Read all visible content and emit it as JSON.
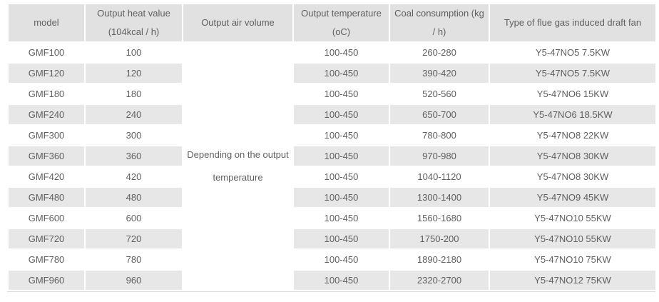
{
  "table": {
    "headers": {
      "model": "model",
      "heat": "Output heat value\n(104kcal / h)",
      "air": "Output air volume",
      "temp": "Output temperature\n(oC)",
      "coal": "Coal consumption (kg\n/ h)",
      "fan": "Type of flue gas induced draft fan"
    },
    "air_volume_note": "Depending on the output\ntemperature",
    "rows": [
      {
        "model": "GMF100",
        "heat": "100",
        "temp": "100-450",
        "coal": "260-280",
        "fan": "Y5-47NO5 7.5KW"
      },
      {
        "model": "GMF120",
        "heat": "120",
        "temp": "100-450",
        "coal": "390-420",
        "fan": "Y5-47NO5 7.5KW"
      },
      {
        "model": "GMF180",
        "heat": "180",
        "temp": "100-450",
        "coal": "520-560",
        "fan": "Y5-47NO6 15KW"
      },
      {
        "model": "GMF240",
        "heat": "240",
        "temp": "100-450",
        "coal": "650-700",
        "fan": "Y5-47NO6 18.5KW"
      },
      {
        "model": "GMF300",
        "heat": "300",
        "temp": "100-450",
        "coal": "780-800",
        "fan": "Y5-47NO8 22KW"
      },
      {
        "model": "GMF360",
        "heat": "360",
        "temp": "100-450",
        "coal": "970-980",
        "fan": "Y5-47NO8 30KW"
      },
      {
        "model": "GMF420",
        "heat": "420",
        "temp": "100-450",
        "coal": "1040-1120",
        "fan": "Y5-47NO8 30KW"
      },
      {
        "model": "GMF480",
        "heat": "480",
        "temp": "100-450",
        "coal": "1300-1400",
        "fan": "Y5-47NO9 45KW"
      },
      {
        "model": "GMF600",
        "heat": "600",
        "temp": "100-450",
        "coal": "1560-1680",
        "fan": "Y5-47NO10 55KW"
      },
      {
        "model": "GMF720",
        "heat": "720",
        "temp": "100-450",
        "coal": "1750-200",
        "fan": "Y5-47NO10 55KW"
      },
      {
        "model": "GMF780",
        "heat": "780",
        "temp": "100-450",
        "coal": "1890-2180",
        "fan": "Y5-47NO10 75KW"
      },
      {
        "model": "GMF960",
        "heat": "960",
        "temp": "100-450",
        "coal": "2320-2700",
        "fan": "Y5-47NO12 75KW"
      }
    ],
    "colors": {
      "header_bg": "#e1e1e1",
      "stripe_bg": "#e7e7e7",
      "cell_bg": "#ffffff",
      "text": "#5f5f5f",
      "bottom_rule": "#dcdcdc"
    }
  },
  "chart_data": {
    "type": "table",
    "title": "",
    "columns": [
      "model",
      "Output heat value (104kcal / h)",
      "Output air volume",
      "Output temperature (oC)",
      "Coal consumption (kg / h)",
      "Type of flue gas induced draft fan"
    ],
    "rows": [
      [
        "GMF100",
        "100",
        "Depending on the output temperature",
        "100-450",
        "260-280",
        "Y5-47NO5 7.5KW"
      ],
      [
        "GMF120",
        "120",
        "Depending on the output temperature",
        "100-450",
        "390-420",
        "Y5-47NO5 7.5KW"
      ],
      [
        "GMF180",
        "180",
        "Depending on the output temperature",
        "100-450",
        "520-560",
        "Y5-47NO6 15KW"
      ],
      [
        "GMF240",
        "240",
        "Depending on the output temperature",
        "100-450",
        "650-700",
        "Y5-47NO6 18.5KW"
      ],
      [
        "GMF300",
        "300",
        "Depending on the output temperature",
        "100-450",
        "780-800",
        "Y5-47NO8 22KW"
      ],
      [
        "GMF360",
        "360",
        "Depending on the output temperature",
        "100-450",
        "970-980",
        "Y5-47NO8 30KW"
      ],
      [
        "GMF420",
        "420",
        "Depending on the output temperature",
        "100-450",
        "1040-1120",
        "Y5-47NO8 30KW"
      ],
      [
        "GMF480",
        "480",
        "Depending on the output temperature",
        "100-450",
        "1300-1400",
        "Y5-47NO9 45KW"
      ],
      [
        "GMF600",
        "600",
        "Depending on the output temperature",
        "100-450",
        "1560-1680",
        "Y5-47NO10 55KW"
      ],
      [
        "GMF720",
        "720",
        "Depending on the output temperature",
        "100-450",
        "1750-200",
        "Y5-47NO10 55KW"
      ],
      [
        "GMF780",
        "780",
        "Depending on the output temperature",
        "100-450",
        "1890-2180",
        "Y5-47NO10 75KW"
      ],
      [
        "GMF960",
        "960",
        "Depending on the output temperature",
        "100-450",
        "2320-2700",
        "Y5-47NO12 75KW"
      ]
    ]
  }
}
